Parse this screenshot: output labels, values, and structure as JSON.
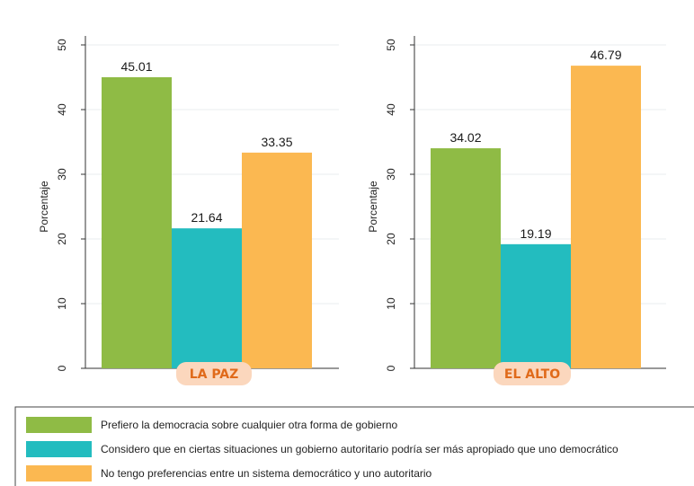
{
  "chart_data": [
    {
      "type": "bar",
      "panel_label": "LA PAZ",
      "ylabel": "Porcentaje",
      "ylim": [
        0,
        50
      ],
      "yticks": [
        "0",
        "10",
        "20",
        "30",
        "40",
        "50"
      ],
      "grid": true,
      "series": [
        {
          "name": "Prefiero la democracia sobre cualquier otra forma de gobierno",
          "value": 45.01,
          "label": "45.01",
          "color": "#8fbb45"
        },
        {
          "name": "Considero que en ciertas situaciones un gobierno autoritario podría ser más apropiado que uno democrático",
          "value": 21.64,
          "label": "21.64",
          "color": "#23bcbf"
        },
        {
          "name": "No tengo preferencias entre un sistema democrático y uno autoritario",
          "value": 33.35,
          "label": "33.35",
          "color": "#fbb851"
        }
      ]
    },
    {
      "type": "bar",
      "panel_label": "EL ALTO",
      "ylabel": "Porcentaje",
      "ylim": [
        0,
        50
      ],
      "yticks": [
        "0",
        "10",
        "20",
        "30",
        "40",
        "50"
      ],
      "grid": true,
      "series": [
        {
          "name": "Prefiero la democracia sobre cualquier otra forma de gobierno",
          "value": 34.02,
          "label": "34.02",
          "color": "#8fbb45"
        },
        {
          "name": "Considero que en ciertas situaciones un gobierno autoritario podría ser más apropiado que uno democrático",
          "value": 19.19,
          "label": "19.19",
          "color": "#23bcbf"
        },
        {
          "name": "No tengo preferencias entre un sistema democrático y uno autoritario",
          "value": 46.79,
          "label": "46.79",
          "color": "#fbb851"
        }
      ]
    }
  ],
  "legend": {
    "placement": "bottom",
    "items": [
      {
        "label": "Prefiero la democracia sobre cualquier otra forma de gobierno",
        "color": "#8fbb45"
      },
      {
        "label": "Considero que en ciertas situaciones un gobierno autoritario podría ser más apropiado que uno democrático",
        "color": "#23bcbf"
      },
      {
        "label": "No tengo preferencias entre un sistema democrático y uno autoritario",
        "color": "#fbb851"
      }
    ]
  },
  "colors": {
    "badge_fill": "#fbd7bd",
    "badge_text": "#e06a1a",
    "grid": "#e8ecef",
    "axis": "#333333"
  }
}
